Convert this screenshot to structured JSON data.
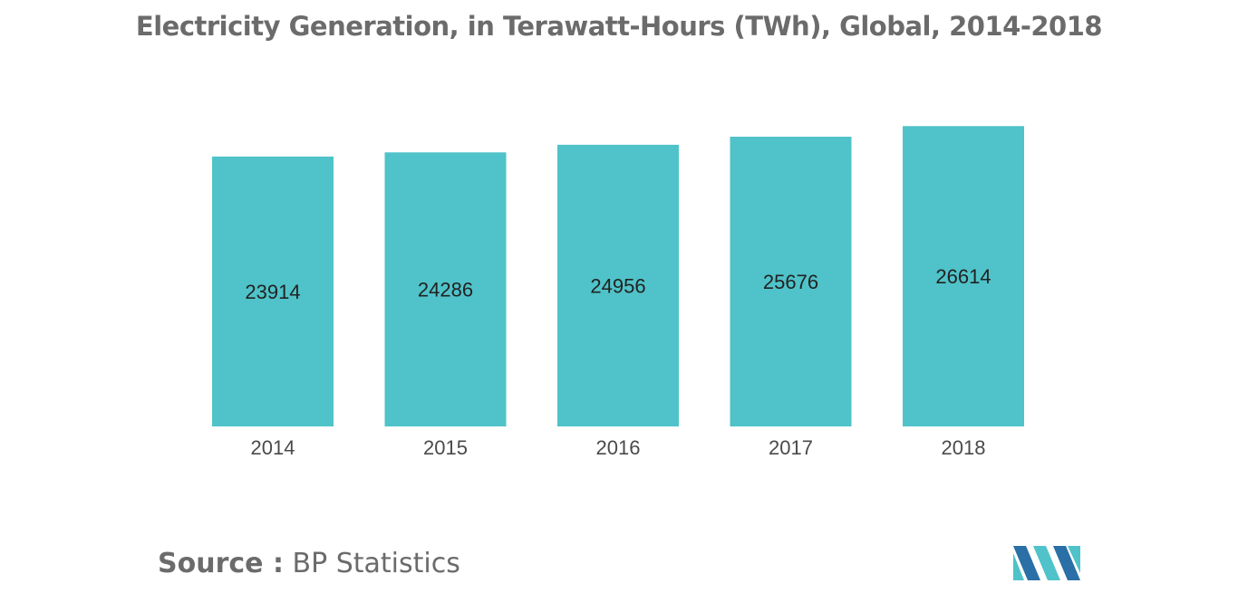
{
  "title": "Electricity Generation, in Terawatt-Hours (TWh), Global, 2014-2018",
  "source": {
    "label": "Source :",
    "value": "BP Statistics"
  },
  "colors": {
    "bar": "#4fc3c9",
    "title": "#6b6b6b",
    "logo_dark": "#2a6fa6",
    "logo_light": "#4fc3c9"
  },
  "logo_icon": "mordor-intelligence-logo-icon",
  "chart_data": {
    "type": "bar",
    "categories": [
      "2014",
      "2015",
      "2016",
      "2017",
      "2018"
    ],
    "values": [
      23914,
      24286,
      24956,
      25676,
      26614
    ],
    "value_labels": [
      "23914",
      "24286",
      "24956",
      "25676",
      "26614"
    ],
    "title": "Electricity Generation, in Terawatt-Hours (TWh), Global, 2014-2018",
    "xlabel": "",
    "ylabel": "",
    "ylim": [
      0,
      28000
    ],
    "grid": false,
    "legend": "none",
    "data_labels": "inside-center"
  }
}
